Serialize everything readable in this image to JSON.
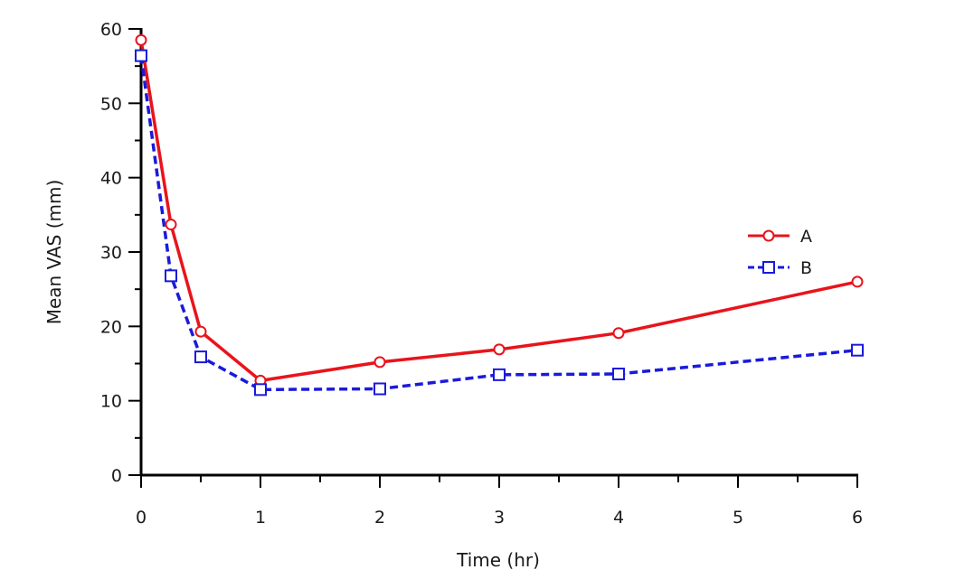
{
  "chart_data": {
    "type": "line",
    "title": "",
    "xlabel": "Time (hr)",
    "ylabel": "Mean VAS (mm)",
    "xlim": [
      0,
      6
    ],
    "ylim": [
      0,
      60
    ],
    "x_ticks": [
      0,
      1,
      2,
      3,
      4,
      5,
      6
    ],
    "x_minor_ticks": [
      0.5,
      1.5,
      2.5,
      3.5,
      4.5,
      5.5
    ],
    "y_ticks": [
      0,
      10,
      20,
      30,
      40,
      50,
      60
    ],
    "y_minor_ticks": [
      5,
      15,
      25,
      35,
      45,
      55
    ],
    "grid": false,
    "legend_position": "right",
    "x": [
      0,
      0.25,
      0.5,
      1,
      2,
      3,
      4,
      6
    ],
    "series": [
      {
        "name": "A",
        "values": [
          58.5,
          33.7,
          19.3,
          12.7,
          15.2,
          16.9,
          19.1,
          26.0
        ],
        "color": "#e8141c",
        "line_style": "solid",
        "marker": "circle"
      },
      {
        "name": "B",
        "values": [
          56.4,
          26.8,
          15.9,
          11.5,
          11.6,
          13.5,
          13.6,
          16.8
        ],
        "color": "#1a1adc",
        "line_style": "dashed",
        "marker": "square"
      }
    ]
  }
}
